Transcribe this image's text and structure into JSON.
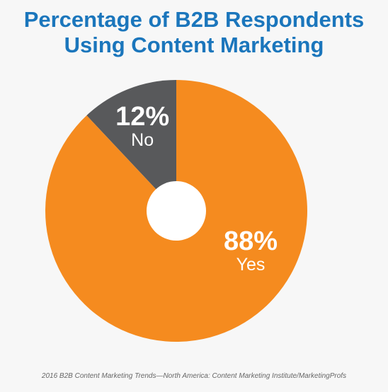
{
  "chart_data": {
    "type": "pie",
    "title_lines": [
      "Percentage of B2B Respondents",
      "Using Content Marketing"
    ],
    "slices": [
      {
        "label": "No",
        "value": 12,
        "value_text": "12%",
        "color": "#58595b"
      },
      {
        "label": "Yes",
        "value": 88,
        "value_text": "88%",
        "color": "#f58b1f"
      }
    ],
    "donut": true,
    "hole_color": "#ffffff",
    "source": "2016 B2B Content Marketing Trends—North America: Content Marketing Institute/MarketingProfs"
  }
}
